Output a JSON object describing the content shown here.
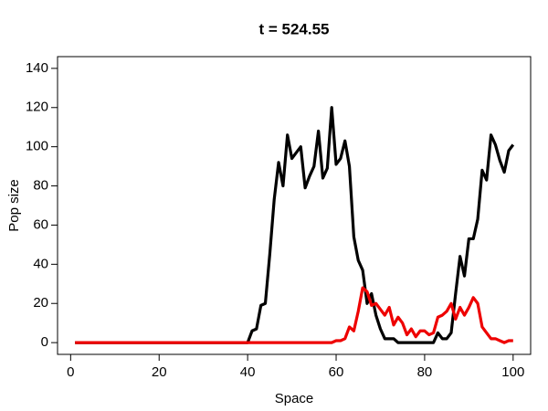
{
  "chart_data": {
    "type": "line",
    "title": "t = 524.55",
    "x_label": "Space",
    "y_label": "Pop size",
    "x": [
      1,
      2,
      3,
      4,
      5,
      6,
      7,
      8,
      9,
      10,
      11,
      12,
      13,
      14,
      15,
      16,
      17,
      18,
      19,
      20,
      21,
      22,
      23,
      24,
      25,
      26,
      27,
      28,
      29,
      30,
      31,
      32,
      33,
      34,
      35,
      36,
      37,
      38,
      39,
      40,
      41,
      42,
      43,
      44,
      45,
      46,
      47,
      48,
      49,
      50,
      51,
      52,
      53,
      54,
      55,
      56,
      57,
      58,
      59,
      60,
      61,
      62,
      63,
      64,
      65,
      66,
      67,
      68,
      69,
      70,
      71,
      72,
      73,
      74,
      75,
      76,
      77,
      78,
      79,
      80,
      81,
      82,
      83,
      84,
      85,
      86,
      87,
      88,
      89,
      90,
      91,
      92,
      93,
      94,
      95,
      96,
      97,
      98,
      99,
      100
    ],
    "series": [
      {
        "color": "#000000",
        "values": [
          0,
          0,
          0,
          0,
          0,
          0,
          0,
          0,
          0,
          0,
          0,
          0,
          0,
          0,
          0,
          0,
          0,
          0,
          0,
          0,
          0,
          0,
          0,
          0,
          0,
          0,
          0,
          0,
          0,
          0,
          0,
          0,
          0,
          0,
          0,
          0,
          0,
          0,
          0,
          0,
          6,
          7,
          19,
          20,
          45,
          73,
          92,
          80,
          106,
          94,
          97,
          100,
          79,
          85,
          90,
          108,
          84,
          89,
          120,
          91,
          94,
          103,
          90,
          54,
          42,
          37,
          20,
          25,
          14,
          7,
          2,
          2,
          2,
          0,
          0,
          0,
          0,
          0,
          0,
          0,
          0,
          0,
          5,
          2,
          2,
          5,
          25,
          44,
          34,
          53,
          53,
          63,
          88,
          83,
          106,
          101,
          93,
          87,
          98,
          101
        ]
      },
      {
        "color": "#ee0000",
        "values": [
          0,
          0,
          0,
          0,
          0,
          0,
          0,
          0,
          0,
          0,
          0,
          0,
          0,
          0,
          0,
          0,
          0,
          0,
          0,
          0,
          0,
          0,
          0,
          0,
          0,
          0,
          0,
          0,
          0,
          0,
          0,
          0,
          0,
          0,
          0,
          0,
          0,
          0,
          0,
          0,
          0,
          0,
          0,
          0,
          0,
          0,
          0,
          0,
          0,
          0,
          0,
          0,
          0,
          0,
          0,
          0,
          0,
          0,
          0,
          1,
          1,
          2,
          8,
          6,
          16,
          28,
          26,
          19,
          20,
          17,
          14,
          18,
          9,
          13,
          10,
          4,
          7,
          3,
          6,
          6,
          4,
          5,
          13,
          14,
          16,
          20,
          12,
          18,
          14,
          18,
          23,
          20,
          8,
          5,
          2,
          2,
          1,
          0,
          1,
          1
        ]
      }
    ],
    "xlim": [
      -2.96,
      103.96
    ],
    "ylim": [
      -6,
      146
    ],
    "xticks": [
      0,
      20,
      40,
      60,
      80,
      100
    ],
    "yticks": [
      0,
      20,
      40,
      60,
      80,
      100,
      120,
      140
    ]
  }
}
